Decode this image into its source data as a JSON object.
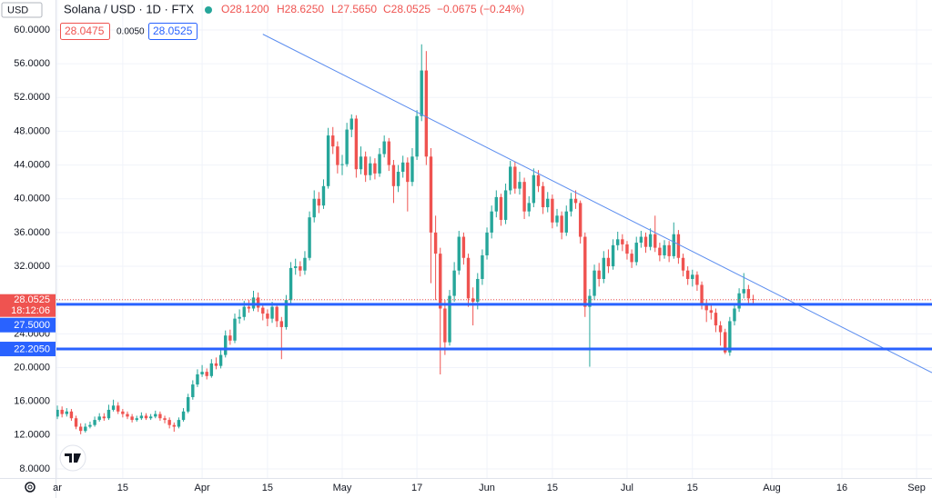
{
  "chart_data": {
    "type": "candlestick",
    "currency": "USD",
    "title": "Solana / USD · 1D · FTX",
    "legend_ohlc": [
      "O28.1200",
      "H28.6250",
      "L27.5650",
      "C28.0525",
      "−0.0675 (−0.24%)"
    ],
    "bid": "28.0475",
    "spread": "0.0050",
    "ask": "28.0525",
    "up_color": "#26a69a",
    "down_color": "#ef5350",
    "grid": true,
    "xlim": [
      -0.2,
      187.3
    ],
    "ylim": [
      6.92,
      63.55
    ],
    "xticks": [
      {
        "value": 0,
        "label": "ar"
      },
      {
        "value": 14,
        "label": "15"
      },
      {
        "value": 31,
        "label": "Apr"
      },
      {
        "value": 45,
        "label": "15"
      },
      {
        "value": 61,
        "label": "May"
      },
      {
        "value": 77,
        "label": "17"
      },
      {
        "value": 92,
        "label": "Jun"
      },
      {
        "value": 106,
        "label": "15"
      },
      {
        "value": 122,
        "label": "Jul"
      },
      {
        "value": 136,
        "label": "15"
      },
      {
        "value": 153,
        "label": "Aug"
      },
      {
        "value": 168,
        "label": "16"
      },
      {
        "value": 184,
        "label": "Sep"
      }
    ],
    "yticks": [
      {
        "value": 8,
        "label": "8.0000"
      },
      {
        "value": 12,
        "label": "12.0000"
      },
      {
        "value": 16,
        "label": "16.0000"
      },
      {
        "value": 20,
        "label": "20.0000"
      },
      {
        "value": 24,
        "label": "24.0000"
      },
      {
        "value": 28,
        "label": "28.0000"
      },
      {
        "value": 32,
        "label": "32.0000"
      },
      {
        "value": 36,
        "label": "36.0000"
      },
      {
        "value": 40,
        "label": "40.0000"
      },
      {
        "value": 44,
        "label": "44.0000"
      },
      {
        "value": 48,
        "label": "48.0000"
      },
      {
        "value": 52,
        "label": "52.0000"
      },
      {
        "value": 56,
        "label": "56.0000"
      },
      {
        "value": 60,
        "label": "60.0000"
      }
    ],
    "open": [
      14.2,
      15,
      14.5,
      14.8,
      14,
      13,
      12.5,
      13,
      13.2,
      13.8,
      14.2,
      14,
      15,
      15.5,
      14.8,
      14.5,
      14.2,
      13.8,
      14,
      14.3,
      14,
      14.2,
      14.5,
      14,
      13.8,
      13.2,
      13,
      13.8,
      14.8,
      16.5,
      18,
      19.2,
      19.5,
      19,
      20.5,
      20.2,
      21.5,
      23.8,
      23.2,
      25.8,
      26,
      27.2,
      27,
      28.3,
      27.1,
      26.4,
      25.8,
      27.2,
      25.5,
      24.8,
      28,
      31.8,
      32,
      31.5,
      33,
      37.8,
      40,
      39.2,
      41.5,
      47.5,
      46.2,
      44,
      44.1,
      48.2,
      49.5,
      43.5,
      45,
      42.8,
      44.2,
      43,
      45.3,
      46.8,
      44,
      41.5,
      43.2,
      44.3,
      42,
      45,
      49.8,
      55.2,
      45,
      36,
      33.5,
      27,
      23,
      28.5,
      31.5,
      35.5,
      33,
      28.2,
      27.8,
      30.5,
      33.3,
      36,
      38.5,
      40.2,
      37.5,
      41,
      43.8,
      41.2,
      42,
      38.5,
      39.5,
      42.8,
      41.5,
      39,
      40,
      37.2,
      38,
      36,
      38.5,
      40,
      39.5,
      35.5,
      27.2,
      28.5,
      31.5,
      30.5,
      33,
      32,
      34.5,
      35.2,
      34.6,
      33.5,
      32.5,
      34.8,
      35.5,
      34.3,
      35.8,
      34.2,
      33.3,
      34.5,
      33.2,
      35.8,
      33,
      31.5,
      30.5,
      31,
      29.8,
      27.5,
      26.8,
      26.5,
      25,
      24.2,
      21.8,
      25.5,
      27,
      28.8,
      29.3,
      28.12
    ],
    "high": [
      15.5,
      15.4,
      15.2,
      15.1,
      14.3,
      13.4,
      13.4,
      13.6,
      14.2,
      14.6,
      14.6,
      15.6,
      16.2,
      15.9,
      15.1,
      14.8,
      14.5,
      14.3,
      14.7,
      14.6,
      14.5,
      14.9,
      14.8,
      14.3,
      14.1,
      13.5,
      14.1,
      15.2,
      16.9,
      18.5,
      19.8,
      20.3,
      19.9,
      21,
      21.2,
      22.1,
      24.4,
      24.5,
      26.4,
      26.9,
      27.9,
      28,
      29.1,
      28.9,
      27.5,
      26.9,
      27.8,
      27.5,
      26,
      28.6,
      32.5,
      32.9,
      32.6,
      33.8,
      38.5,
      41,
      40.8,
      42.3,
      48.4,
      48.5,
      46.8,
      45.2,
      49,
      50,
      49.9,
      46.2,
      45.6,
      45,
      44.8,
      46,
      47.5,
      47.2,
      44.6,
      44,
      45.1,
      44.9,
      46,
      50.5,
      58.3,
      57.5,
      46,
      38,
      34.2,
      28,
      29.2,
      32.5,
      36.2,
      36,
      33.5,
      29.5,
      31.2,
      34,
      36.6,
      39.2,
      41,
      40.6,
      41.8,
      44.5,
      44.4,
      43.2,
      42.5,
      40.3,
      43.6,
      43.4,
      42,
      40.8,
      40.5,
      38.8,
      38.5,
      39.2,
      40.7,
      41,
      39.8,
      36,
      29.3,
      32.2,
      32.4,
      33.8,
      34,
      35.2,
      36.1,
      35.8,
      35,
      34,
      35.5,
      36.2,
      36,
      36.5,
      38,
      34.8,
      35.1,
      35,
      37.2,
      36.3,
      33.5,
      32,
      31.6,
      31.4,
      30.2,
      28.1,
      27.4,
      27,
      25.5,
      24.6,
      26,
      27.6,
      29.4,
      31.2,
      29.8,
      28.625
    ],
    "low": [
      13.9,
      14.1,
      14.2,
      13.7,
      12.7,
      12.1,
      12.3,
      12.8,
      13,
      13.6,
      13.7,
      13.8,
      14.8,
      14.5,
      14.1,
      13.9,
      13.5,
      13.6,
      13.8,
      13.8,
      13.8,
      14,
      13.7,
      13.4,
      12.8,
      12.4,
      12.8,
      13.6,
      14.6,
      16.2,
      17.7,
      18.9,
      18.6,
      18.8,
      19.8,
      19.9,
      21.2,
      22.7,
      22.9,
      25.2,
      25.6,
      26.5,
      26.7,
      26.6,
      25.6,
      24.9,
      25.3,
      24.8,
      21,
      24.5,
      27.6,
      31,
      30.8,
      31,
      32.7,
      37.2,
      38.3,
      38.8,
      41.2,
      45.3,
      43,
      42.8,
      43.8,
      47.3,
      42.5,
      42.9,
      42,
      42.2,
      42.3,
      42.6,
      44.9,
      43.3,
      39.5,
      40.8,
      42.5,
      38.5,
      41.5,
      44.6,
      49.2,
      44,
      30,
      28,
      19.2,
      21.5,
      22.6,
      27.8,
      31,
      32.2,
      27.2,
      25,
      26.9,
      29.8,
      32.8,
      35.3,
      37.8,
      36.8,
      37,
      40.5,
      40.6,
      40.5,
      37.6,
      37.9,
      39,
      40.8,
      38.2,
      38.4,
      36.5,
      36.7,
      35.2,
      35.6,
      37.9,
      38.8,
      34.7,
      26,
      20.1,
      28,
      29.6,
      30,
      31.2,
      31.6,
      33.9,
      33.8,
      32.8,
      31.8,
      32.1,
      34.2,
      33.6,
      33.9,
      33.7,
      32.6,
      32.9,
      32.5,
      32.9,
      32.3,
      30.8,
      29.8,
      29.6,
      29.1,
      26.9,
      25.4,
      25.7,
      24.2,
      22.6,
      21.6,
      21.4,
      25,
      26.6,
      28.2,
      27.5,
      27.565
    ],
    "close": [
      15,
      14.5,
      14.8,
      14,
      13,
      12.5,
      13,
      13.2,
      13.8,
      14.2,
      14,
      15,
      15.5,
      14.8,
      14.5,
      14.2,
      13.8,
      14,
      14.3,
      14,
      14.2,
      14.5,
      14,
      13.8,
      13.2,
      13,
      13.8,
      14.8,
      16.5,
      18,
      19.2,
      19.5,
      19,
      20.5,
      20.2,
      21.5,
      23.8,
      23.2,
      25.8,
      26,
      27.2,
      27,
      28.3,
      27.1,
      26.4,
      25.8,
      27.2,
      25.5,
      24.8,
      28,
      31.8,
      32,
      31.5,
      33,
      37.8,
      40,
      39.2,
      41.5,
      47.5,
      46.2,
      44,
      44.1,
      48.2,
      49.5,
      43.5,
      45,
      42.8,
      44.2,
      43,
      45.3,
      46.8,
      44,
      41.5,
      43.2,
      44.3,
      42,
      45,
      49.8,
      55.2,
      45,
      36,
      33.5,
      27,
      23,
      28.5,
      31.5,
      35.5,
      33,
      28.2,
      27.8,
      30.5,
      33.3,
      36,
      38.5,
      40.2,
      37.5,
      41,
      43.8,
      41.2,
      42,
      38.5,
      39.5,
      42.8,
      41.5,
      39,
      40,
      37.2,
      38,
      36,
      38.5,
      40,
      39.5,
      35.5,
      27.2,
      28.5,
      31.5,
      30.5,
      33,
      32,
      34.5,
      35.2,
      34.6,
      33.5,
      32.5,
      34.8,
      35.5,
      34.3,
      35.8,
      34.2,
      33.3,
      34.5,
      33.2,
      35.8,
      33,
      31.5,
      30.5,
      31,
      29.8,
      27.5,
      26.8,
      26.5,
      25,
      24.2,
      21.8,
      25.5,
      27,
      28.8,
      29.3,
      28.2,
      28.0525
    ],
    "trendline": {
      "x": [
        44,
        187.3
      ],
      "y": [
        59.5,
        19.4
      ],
      "color": "#5b8def"
    },
    "last_price": {
      "value": 28.0525,
      "label": "28.0525",
      "countdown": "18:12:06",
      "color": "#ef5350"
    },
    "price_lines": [
      {
        "value": 27.5,
        "label": "27.5000",
        "color": "#2962ff"
      },
      {
        "value": 22.205,
        "label": "22.2050",
        "color": "#2962ff"
      }
    ]
  }
}
